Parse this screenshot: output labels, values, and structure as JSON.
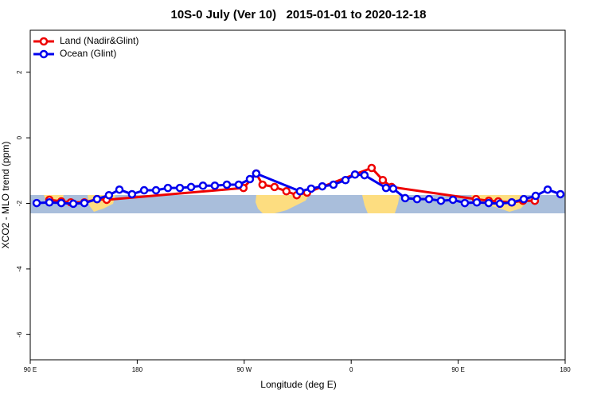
{
  "chart_data": {
    "type": "line",
    "title": "10S-0 July (Ver 10)   2015-01-01 to 2020-12-18",
    "x_label": "Longitude (deg E)",
    "y_label": "XCO2 - MLO trend (ppm)",
    "xlim": [
      90,
      540
    ],
    "ylim": [
      -6.77,
      3.28
    ],
    "xticks": [
      {
        "value": 90,
        "label": "90 E"
      },
      180,
      {
        "value": 270,
        "label": "90 W"
      },
      {
        "value": 360,
        "label": "0"
      },
      {
        "value": 450,
        "label": "90 E"
      },
      {
        "value": 540,
        "label": "180"
      }
    ],
    "yticks": [
      2,
      0,
      -2,
      -4,
      -6
    ],
    "legend": "top-left",
    "series": [
      {
        "name": "Land (Nadir&Glint)",
        "color": "#ee0000",
        "x": [
          106.1,
          116.1,
          124.1,
          135.5,
          146.2,
          154.3,
          269.4,
          280.1,
          285.4,
          295.5,
          305.5,
          314.2,
          322.9,
          377.2,
          386.6,
          394.0,
          465.0,
          475.7,
          483.7,
          495.1,
          504.5,
          514.5
        ],
        "values": [
          -1.89,
          -1.94,
          -1.97,
          -1.97,
          -1.87,
          -1.89,
          -1.53,
          -1.09,
          -1.43,
          -1.5,
          -1.63,
          -1.75,
          -1.67,
          -0.92,
          -1.29,
          -1.5,
          -1.87,
          -1.92,
          -1.94,
          -1.97,
          -1.92,
          -1.92
        ]
      },
      {
        "name": "Ocean (Glint)",
        "color": "#0000ee",
        "x": [
          95.4,
          106.1,
          116.1,
          126.2,
          135.5,
          146.2,
          156.2,
          165.0,
          175.6,
          185.8,
          195.8,
          205.8,
          215.9,
          225.3,
          235.3,
          245.3,
          255.4,
          265.4,
          274.8,
          280.1,
          316.9,
          326.3,
          335.7,
          345.1,
          355.2,
          363.2,
          371.2,
          389.3,
          395.3,
          405.4,
          415.4,
          425.5,
          435.5,
          445.6,
          455.6,
          465.7,
          475.7,
          485.1,
          495.1,
          505.2,
          515.2,
          525.3,
          536.0
        ],
        "values": [
          -1.99,
          -1.97,
          -1.99,
          -2.01,
          -1.99,
          -1.87,
          -1.75,
          -1.58,
          -1.72,
          -1.6,
          -1.6,
          -1.53,
          -1.53,
          -1.5,
          -1.46,
          -1.46,
          -1.43,
          -1.43,
          -1.26,
          -1.09,
          -1.63,
          -1.55,
          -1.48,
          -1.43,
          -1.29,
          -1.12,
          -1.14,
          -1.53,
          -1.55,
          -1.84,
          -1.87,
          -1.87,
          -1.92,
          -1.89,
          -1.99,
          -1.97,
          -1.99,
          -2.01,
          -1.97,
          -1.87,
          -1.77,
          -1.58,
          -1.72
        ]
      }
    ]
  }
}
